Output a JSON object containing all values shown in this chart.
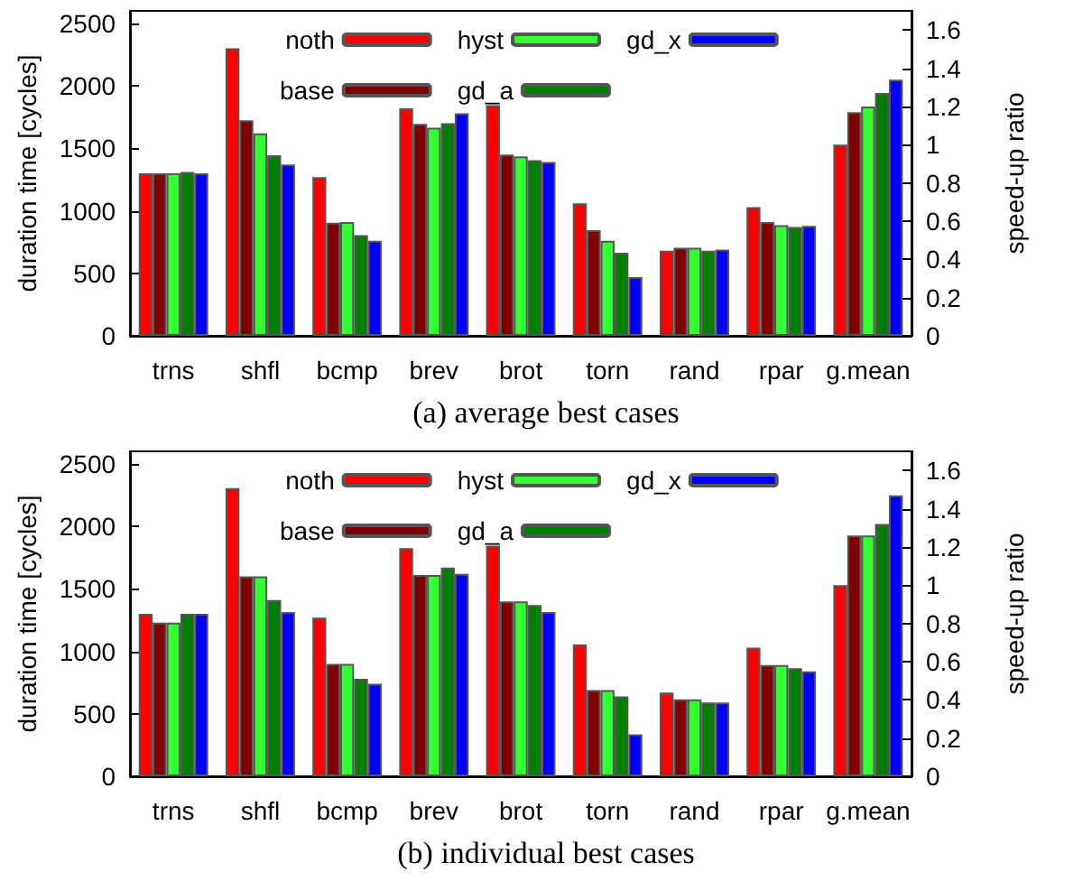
{
  "chart_data": [
    {
      "type": "bar",
      "title": "(a) average best cases",
      "ylabel": "duration time [cycles]",
      "y2label": "speed-up ratio",
      "categories": [
        "trns",
        "shfl",
        "bcmp",
        "brev",
        "brot",
        "torn",
        "rand",
        "rpar",
        "g.mean"
      ],
      "ylim": [
        0,
        2600
      ],
      "yticks": [
        0,
        500,
        1000,
        1500,
        2000,
        2500
      ],
      "y2lim": [
        0,
        1.7
      ],
      "y2ticks": [
        0,
        0.2,
        0.4,
        0.6,
        0.8,
        1,
        1.2,
        1.4,
        1.6
      ],
      "legend": "top",
      "grid": false,
      "series": [
        {
          "name": "noth",
          "color": "#ff0000",
          "values": [
            1300,
            2300,
            1270,
            1820,
            1845,
            1060,
            680,
            1030,
            null
          ]
        },
        {
          "name": "base",
          "color": "#800000",
          "values": [
            1300,
            1725,
            905,
            1695,
            1450,
            845,
            705,
            910,
            null
          ]
        },
        {
          "name": "hyst",
          "color": "#33ff33",
          "values": [
            1300,
            1620,
            910,
            1665,
            1435,
            760,
            705,
            885,
            null
          ]
        },
        {
          "name": "gd_a",
          "color": "#008000",
          "values": [
            1310,
            1445,
            805,
            1700,
            1405,
            665,
            680,
            870,
            null
          ]
        },
        {
          "name": "gd_x",
          "color": "#0000ff",
          "values": [
            1300,
            1370,
            760,
            1780,
            1390,
            470,
            690,
            880,
            null
          ]
        },
        {
          "color": "#ff0000",
          "axis": "y2",
          "values": [
            null,
            null,
            null,
            null,
            null,
            null,
            null,
            null,
            1.0
          ]
        },
        {
          "color": "#800000",
          "axis": "y2",
          "values": [
            null,
            null,
            null,
            null,
            null,
            null,
            null,
            null,
            1.17
          ]
        },
        {
          "color": "#33ff33",
          "axis": "y2",
          "values": [
            null,
            null,
            null,
            null,
            null,
            null,
            null,
            null,
            1.2
          ]
        },
        {
          "color": "#008000",
          "axis": "y2",
          "values": [
            null,
            null,
            null,
            null,
            null,
            null,
            null,
            null,
            1.27
          ]
        },
        {
          "color": "#0000ff",
          "axis": "y2",
          "values": [
            null,
            null,
            null,
            null,
            null,
            null,
            null,
            null,
            1.34
          ]
        }
      ]
    },
    {
      "type": "bar",
      "title": "(b) individual best cases",
      "ylabel": "duration time [cycles]",
      "y2label": "speed-up ratio",
      "categories": [
        "trns",
        "shfl",
        "bcmp",
        "brev",
        "brot",
        "torn",
        "rand",
        "rpar",
        "g.mean"
      ],
      "ylim": [
        0,
        2600
      ],
      "yticks": [
        0,
        500,
        1000,
        1500,
        2000,
        2500
      ],
      "y2lim": [
        0,
        1.7
      ],
      "y2ticks": [
        0,
        0.2,
        0.4,
        0.6,
        0.8,
        1,
        1.2,
        1.4,
        1.6
      ],
      "legend": "top",
      "grid": false,
      "series": [
        {
          "name": "noth",
          "color": "#ff0000",
          "values": [
            1300,
            2305,
            1270,
            1825,
            1845,
            1055,
            670,
            1030,
            null
          ]
        },
        {
          "name": "base",
          "color": "#800000",
          "values": [
            1230,
            1600,
            900,
            1610,
            1400,
            690,
            615,
            890,
            null
          ]
        },
        {
          "name": "hyst",
          "color": "#33ff33",
          "values": [
            1230,
            1600,
            900,
            1610,
            1400,
            690,
            615,
            890,
            null
          ]
        },
        {
          "name": "gd_a",
          "color": "#008000",
          "values": [
            1300,
            1410,
            780,
            1670,
            1370,
            640,
            590,
            865,
            null
          ]
        },
        {
          "name": "gd_x",
          "color": "#0000ff",
          "values": [
            1300,
            1315,
            740,
            1620,
            1315,
            335,
            590,
            840,
            null
          ]
        },
        {
          "color": "#ff0000",
          "axis": "y2",
          "values": [
            null,
            null,
            null,
            null,
            null,
            null,
            null,
            null,
            1.0
          ]
        },
        {
          "color": "#800000",
          "axis": "y2",
          "values": [
            null,
            null,
            null,
            null,
            null,
            null,
            null,
            null,
            1.26
          ]
        },
        {
          "color": "#33ff33",
          "axis": "y2",
          "values": [
            null,
            null,
            null,
            null,
            null,
            null,
            null,
            null,
            1.26
          ]
        },
        {
          "color": "#008000",
          "axis": "y2",
          "values": [
            null,
            null,
            null,
            null,
            null,
            null,
            null,
            null,
            1.32
          ]
        },
        {
          "color": "#0000ff",
          "axis": "y2",
          "values": [
            null,
            null,
            null,
            null,
            null,
            null,
            null,
            null,
            1.47
          ]
        }
      ]
    }
  ]
}
